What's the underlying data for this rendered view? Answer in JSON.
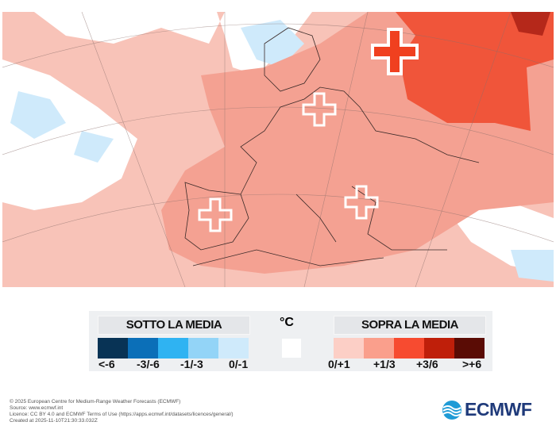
{
  "map": {
    "colors": {
      "base": "#f8c3b8",
      "above_1_3": "#f4a192",
      "above_3_6": "#f0553a",
      "deep": "#c0281a",
      "white": "#ffffff",
      "below": "#bfe0f5"
    },
    "markers": [
      {
        "icon": "cross-icon",
        "style": "filled-red",
        "region": "western-russia"
      },
      {
        "icon": "cross-icon",
        "style": "outline",
        "region": "central-europe"
      },
      {
        "icon": "cross-icon",
        "style": "outline",
        "region": "iberia"
      },
      {
        "icon": "cross-icon",
        "style": "outline",
        "region": "balkans"
      }
    ]
  },
  "legend": {
    "below_title": "SOTTO LA MEDIA",
    "above_title": "SOPRA LA MEDIA",
    "unit": "°C",
    "below": [
      {
        "label": "<-6",
        "color": "#083355"
      },
      {
        "label": "-3/-6",
        "color": "#0b6fb8"
      },
      {
        "label": "-1/-3",
        "color": "#2fb3f2"
      },
      {
        "label": "0/-1",
        "color": "#93d4f7"
      },
      {
        "label": "",
        "color": "#cfeafb"
      }
    ],
    "neutral_color": "#ffffff",
    "above": [
      {
        "label": "0/+1",
        "color": "#fccfc6"
      },
      {
        "label": "+1/3",
        "color": "#fa9f8c"
      },
      {
        "label": "+3/6",
        "color": "#f74b30"
      },
      {
        "label": ">+6",
        "color": "#bf1f0a"
      },
      {
        "label": "",
        "color": "#5a0c05"
      }
    ]
  },
  "footer": {
    "lines": [
      "© 2025 European Centre for Medium-Range Weather Forecasts (ECMWF)",
      "Source: www.ecmwf.int",
      "Licence: CC BY 4.0 and ECMWF Terms of Use (https://apps.ecmwf.int/datasets/licences/general/)",
      "Created at 2025-11-10T21:30:33.032Z"
    ]
  },
  "logo": {
    "text": "ECMWF"
  }
}
